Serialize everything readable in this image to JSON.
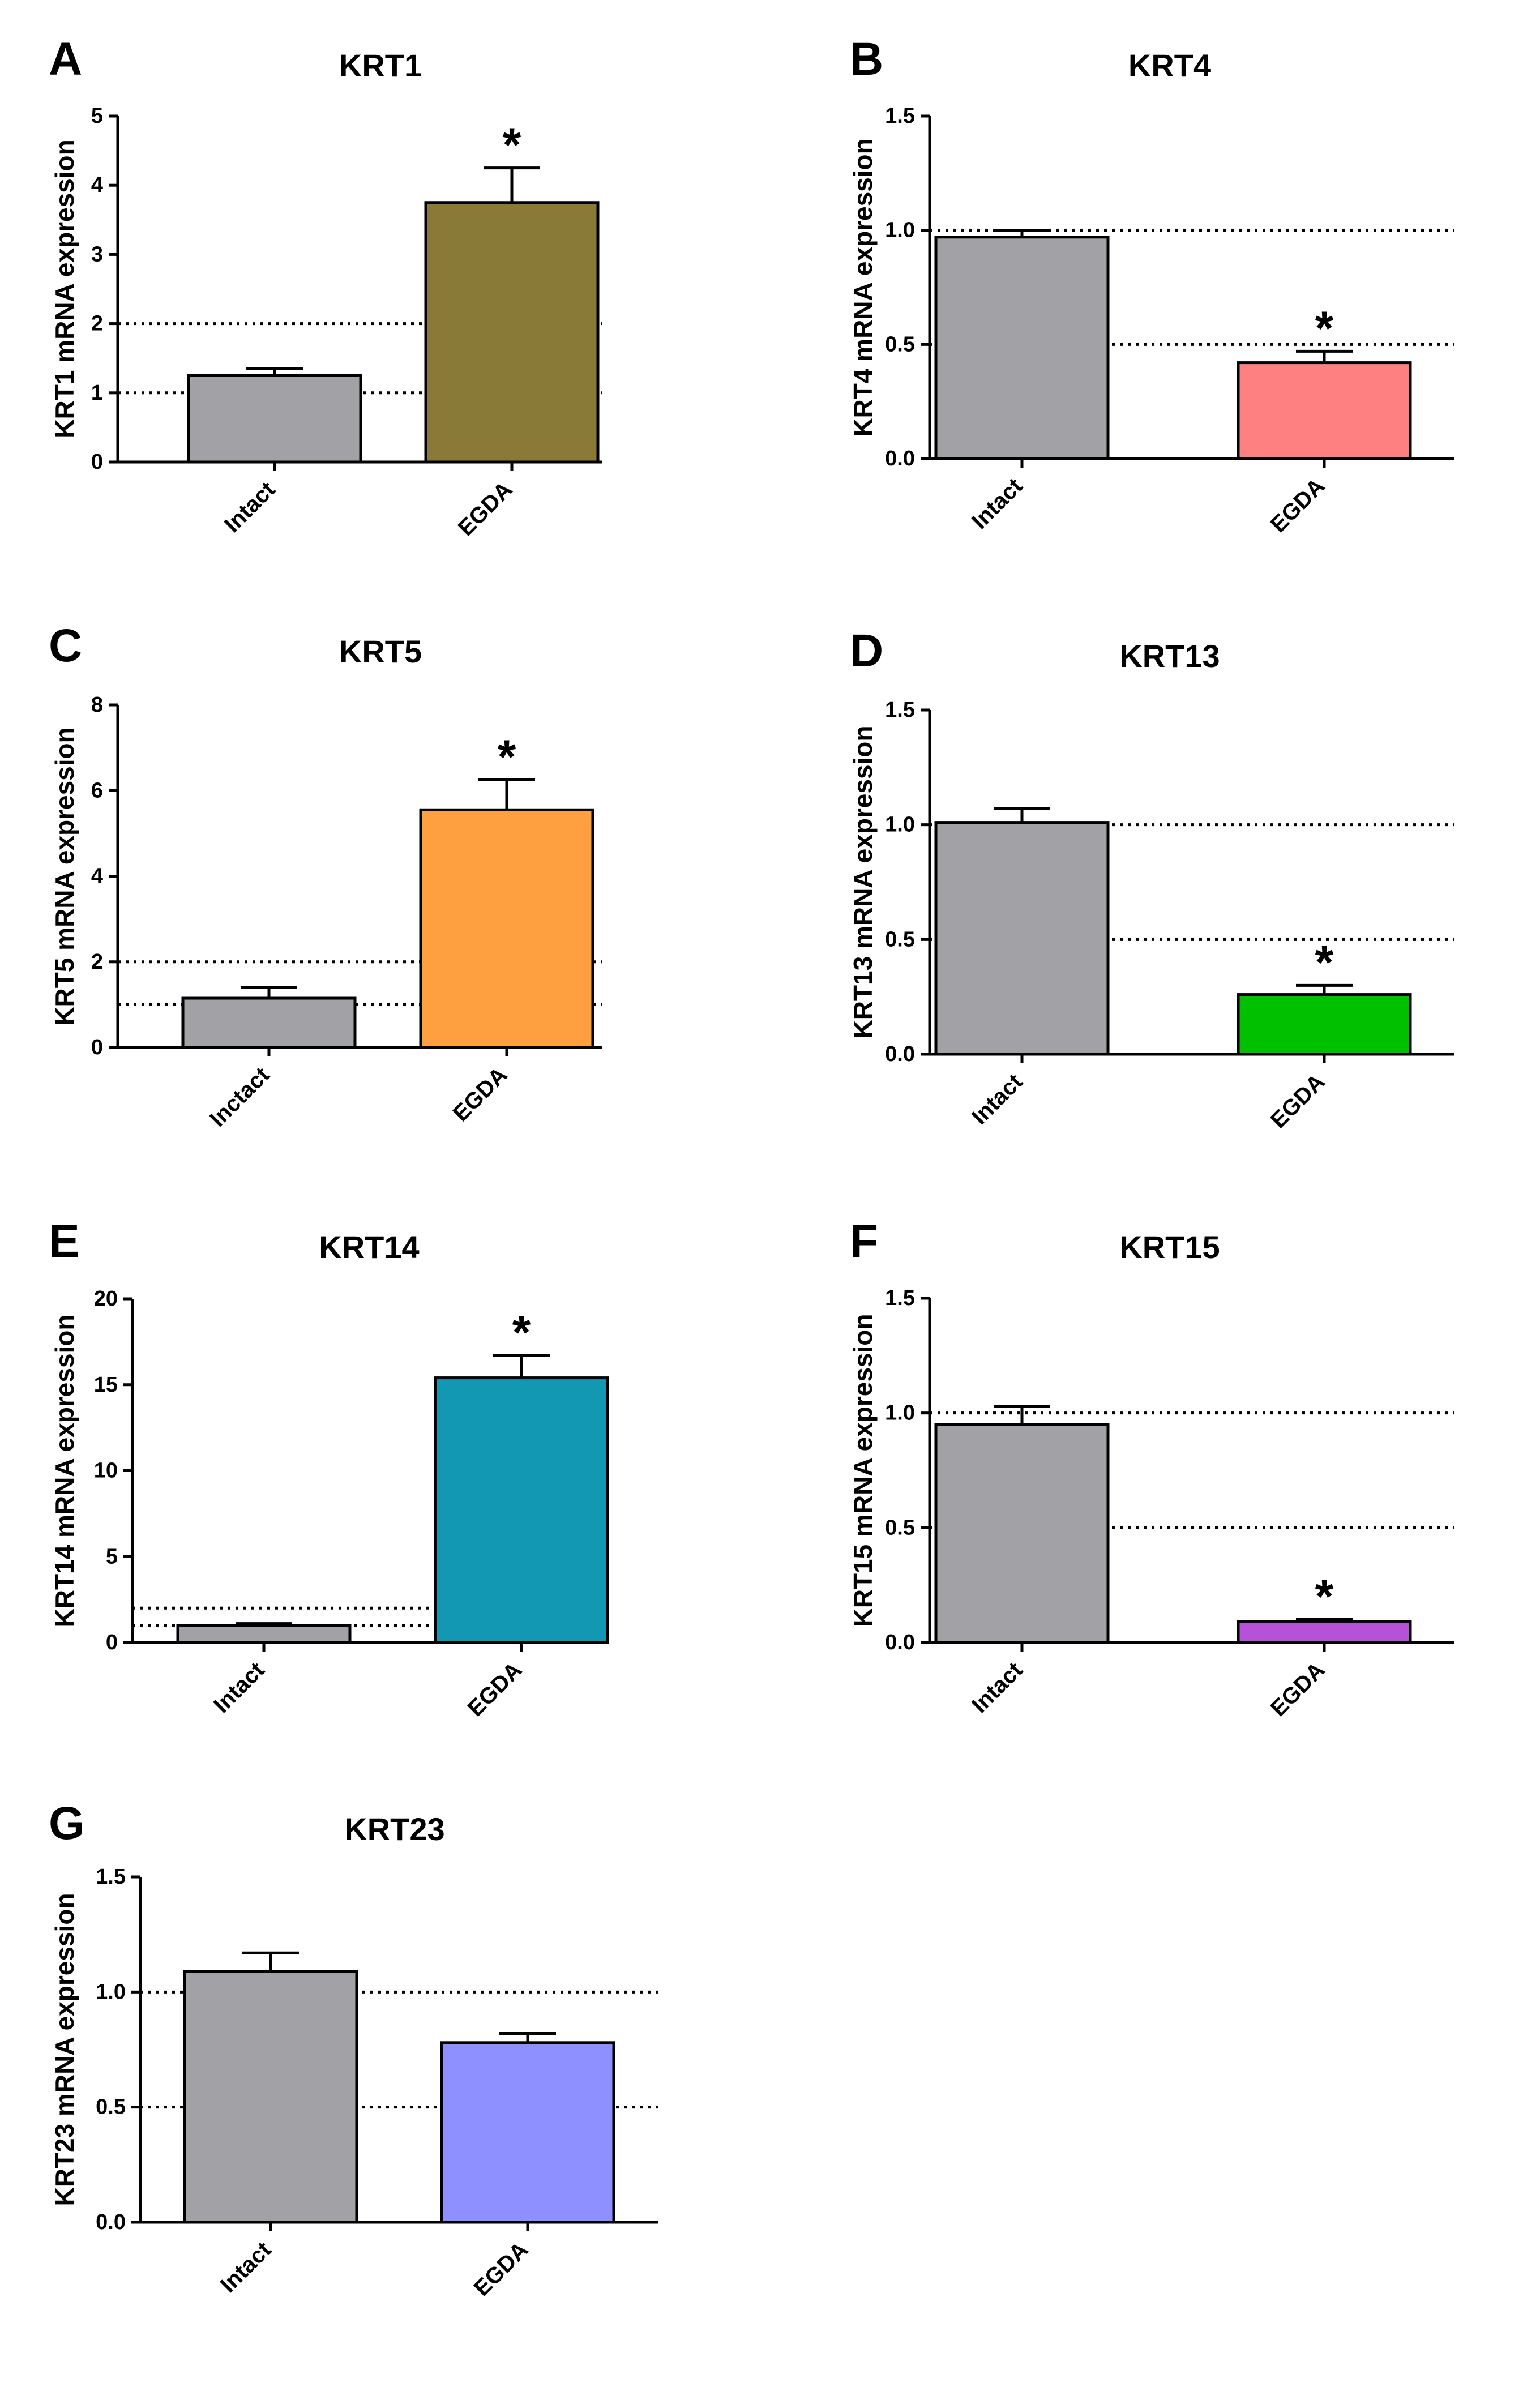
{
  "chart_data": [
    {
      "id": "A",
      "panel_label": "A",
      "type": "bar",
      "title": "KRT1",
      "ylabel": "KRT1 mRNA expression",
      "categories": [
        "Intact",
        "EGDA"
      ],
      "values": [
        1.25,
        3.75
      ],
      "errors": [
        0.1,
        0.5
      ],
      "colors": [
        "#a1a1a6",
        "#8a7a37"
      ],
      "significance": [
        "",
        "*"
      ],
      "ylim": [
        0,
        5
      ],
      "yticks": [
        0,
        1,
        2,
        3,
        4,
        5
      ],
      "ytick_labels": [
        "0",
        "1",
        "2",
        "3",
        "4",
        "5"
      ],
      "reference_lines": [
        1,
        2
      ],
      "grid": false
    },
    {
      "id": "B",
      "panel_label": "B",
      "type": "bar",
      "title": "KRT4",
      "ylabel": "KRT4 mRNA expression",
      "categories": [
        "Intact",
        "EGDA"
      ],
      "values": [
        0.97,
        0.42
      ],
      "errors": [
        0.03,
        0.05
      ],
      "colors": [
        "#a1a1a6",
        "#ff8080"
      ],
      "significance": [
        "",
        "*"
      ],
      "ylim": [
        0,
        1.5
      ],
      "yticks": [
        0,
        0.5,
        1,
        1.5
      ],
      "ytick_labels": [
        "0.0",
        "0.5",
        "1.0",
        "1.5"
      ],
      "reference_lines": [
        0.5,
        1
      ],
      "grid": false
    },
    {
      "id": "C",
      "panel_label": "C",
      "type": "bar",
      "title": "KRT5",
      "ylabel": "KRT5 mRNA expression",
      "categories": [
        "Inctact",
        "EGDA"
      ],
      "values": [
        1.15,
        5.55
      ],
      "errors": [
        0.25,
        0.7
      ],
      "colors": [
        "#a1a1a6",
        "#ffa040"
      ],
      "significance": [
        "",
        "*"
      ],
      "ylim": [
        0,
        8
      ],
      "yticks": [
        0,
        2,
        4,
        6,
        8
      ],
      "ytick_labels": [
        "0",
        "2",
        "4",
        "6",
        "8"
      ],
      "reference_lines": [
        1,
        2
      ],
      "grid": false
    },
    {
      "id": "D",
      "panel_label": "D",
      "type": "bar",
      "title": "KRT13",
      "ylabel": "KRT13 mRNA expression",
      "categories": [
        "Intact",
        "EGDA"
      ],
      "values": [
        1.01,
        0.26
      ],
      "errors": [
        0.06,
        0.04
      ],
      "colors": [
        "#a1a1a6",
        "#00c000"
      ],
      "significance": [
        "",
        "*"
      ],
      "ylim": [
        0,
        1.5
      ],
      "yticks": [
        0,
        0.5,
        1,
        1.5
      ],
      "ytick_labels": [
        "0.0",
        "0.5",
        "1.0",
        "1.5"
      ],
      "reference_lines": [
        0.5,
        1
      ],
      "grid": false
    },
    {
      "id": "E",
      "panel_label": "E",
      "type": "bar",
      "title": "KRT14",
      "ylabel": "KRT14 mRNA expression",
      "categories": [
        "Intact",
        "EGDA"
      ],
      "values": [
        1.0,
        15.4
      ],
      "errors": [
        0.1,
        1.3
      ],
      "colors": [
        "#a1a1a6",
        "#1298b3"
      ],
      "significance": [
        "",
        "*"
      ],
      "ylim": [
        0,
        20
      ],
      "yticks": [
        0,
        5,
        10,
        15,
        20
      ],
      "ytick_labels": [
        "0",
        "5",
        "10",
        "15",
        "20"
      ],
      "reference_lines": [
        1,
        2
      ],
      "grid": false
    },
    {
      "id": "F",
      "panel_label": "F",
      "type": "bar",
      "title": "KRT15",
      "ylabel": "KRT15 mRNA expression",
      "categories": [
        "Intact",
        "EGDA"
      ],
      "values": [
        0.95,
        0.09
      ],
      "errors": [
        0.08,
        0.01
      ],
      "colors": [
        "#a1a1a6",
        "#b552d8"
      ],
      "significance": [
        "",
        "*"
      ],
      "ylim": [
        0,
        1.5
      ],
      "yticks": [
        0,
        0.5,
        1,
        1.5
      ],
      "ytick_labels": [
        "0.0",
        "0.5",
        "1.0",
        "1.5"
      ],
      "reference_lines": [
        0.5,
        1
      ],
      "grid": false
    },
    {
      "id": "G",
      "panel_label": "G",
      "type": "bar",
      "title": "KRT23",
      "ylabel": "KRT23 mRNA expression",
      "categories": [
        "Intact",
        "EGDA"
      ],
      "values": [
        1.09,
        0.78
      ],
      "errors": [
        0.08,
        0.04
      ],
      "colors": [
        "#a1a1a6",
        "#8f90ff"
      ],
      "significance": [
        "",
        ""
      ],
      "ylim": [
        0,
        1.5
      ],
      "yticks": [
        0,
        0.5,
        1,
        1.5
      ],
      "ytick_labels": [
        "0.0",
        "0.5",
        "1.0",
        "1.5"
      ],
      "reference_lines": [
        0.5,
        1
      ],
      "grid": false
    }
  ]
}
